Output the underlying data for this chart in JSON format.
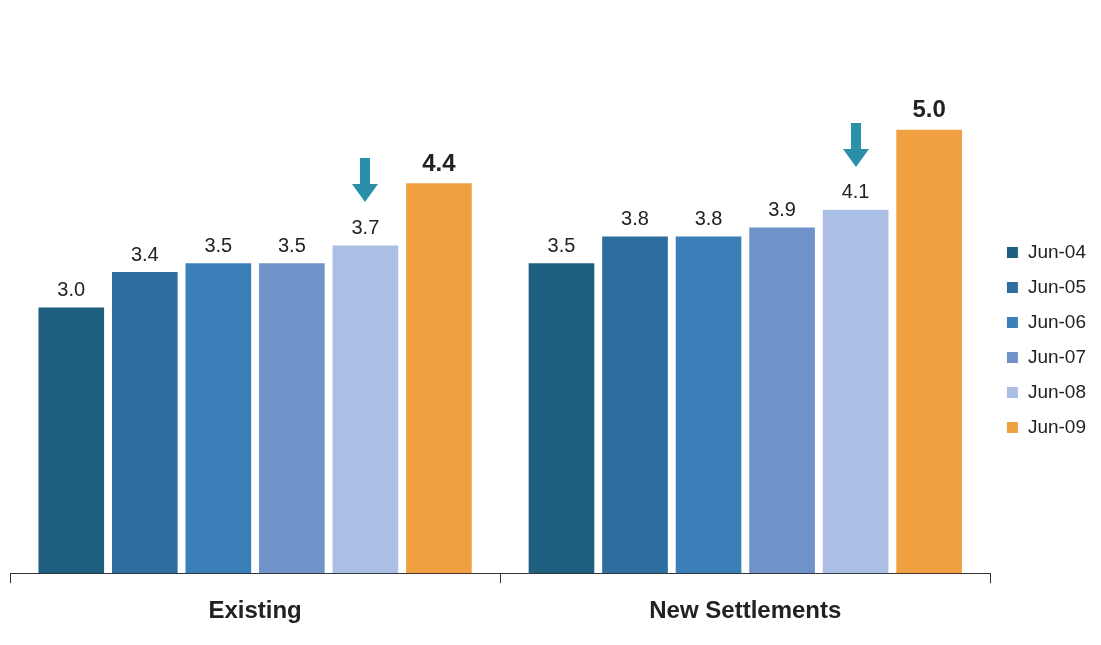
{
  "chart_data": {
    "type": "bar",
    "categories": [
      "Existing",
      "New Settlements"
    ],
    "series": [
      {
        "name": "Jun-04",
        "color": "#1f5f80",
        "values": [
          3.0,
          3.5
        ],
        "value_labels": [
          "3.0",
          "3.5"
        ]
      },
      {
        "name": "Jun-05",
        "color": "#2d6e9e",
        "values": [
          3.4,
          3.8
        ],
        "value_labels": [
          "3.4",
          "3.8"
        ]
      },
      {
        "name": "Jun-06",
        "color": "#3b7fb8",
        "values": [
          3.5,
          3.8
        ],
        "value_labels": [
          "3.5",
          "3.8"
        ]
      },
      {
        "name": "Jun-07",
        "color": "#6f92c9",
        "values": [
          3.5,
          3.9
        ],
        "value_labels": [
          "3.5",
          "3.9"
        ]
      },
      {
        "name": "Jun-08",
        "color": "#aabfe3",
        "values": [
          3.7,
          4.1
        ],
        "value_labels": [
          "3.7",
          "4.1"
        ]
      },
      {
        "name": "Jun-09",
        "color": "#f0a040",
        "values": [
          4.4,
          5.0
        ],
        "value_labels": [
          "4.4",
          "5.0"
        ]
      }
    ],
    "legend": "right",
    "grid": false
  }
}
